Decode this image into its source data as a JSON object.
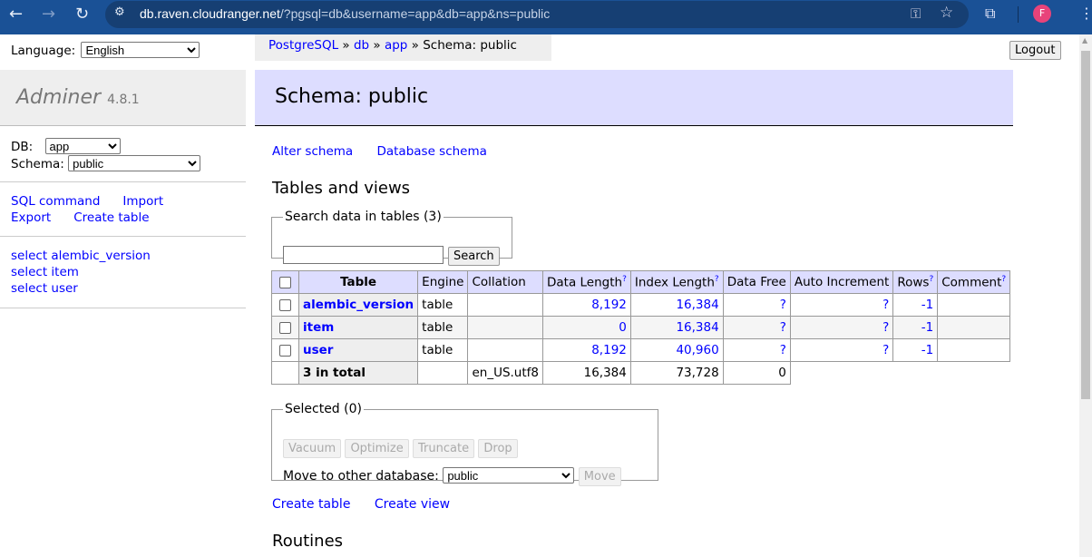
{
  "browser": {
    "url_host": "db.raven.cloudranger.net",
    "url_path": "/?pgsql=db&username=app&db=app&ns=public",
    "avatar": "F"
  },
  "sidebar": {
    "language_label": "Language:",
    "language_value": "English",
    "app_name": "Adminer",
    "version": "4.8.1",
    "db_label": "DB:",
    "db_value": "app",
    "schema_label": "Schema:",
    "schema_value": "public",
    "links": [
      "SQL command",
      "Import",
      "Export",
      "Create table"
    ],
    "tables": [
      "select alembic_version",
      "select item",
      "select user"
    ]
  },
  "breadcrumb": {
    "items": [
      "PostgreSQL",
      "db",
      "app"
    ],
    "current": "Schema: public",
    "sep": "»"
  },
  "logout": "Logout",
  "title": "Schema: public",
  "links": {
    "alter_schema": "Alter schema",
    "database_schema": "Database schema",
    "create_table": "Create table",
    "create_view": "Create view"
  },
  "tables_heading": "Tables and views",
  "search": {
    "legend": "Search data in tables (3)",
    "value": "",
    "button": "Search"
  },
  "table": {
    "headers": [
      "Table",
      "Engine",
      "Collation",
      "Data Length",
      "Index Length",
      "Data Free",
      "Auto Increment",
      "Rows",
      "Comment"
    ],
    "rows": [
      {
        "name": "alembic_version",
        "engine": "table",
        "collation": "",
        "data_length": "8,192",
        "index_length": "16,384",
        "data_free": "?",
        "auto_increment": "?",
        "rows": "-1",
        "comment": ""
      },
      {
        "name": "item",
        "engine": "table",
        "collation": "",
        "data_length": "0",
        "index_length": "16,384",
        "data_free": "?",
        "auto_increment": "?",
        "rows": "-1",
        "comment": ""
      },
      {
        "name": "user",
        "engine": "table",
        "collation": "",
        "data_length": "8,192",
        "index_length": "40,960",
        "data_free": "?",
        "auto_increment": "?",
        "rows": "-1",
        "comment": ""
      }
    ],
    "total": {
      "label": "3 in total",
      "collation": "en_US.utf8",
      "data_length": "16,384",
      "index_length": "73,728",
      "data_free": "0"
    }
  },
  "selected": {
    "legend": "Selected (0)",
    "buttons": [
      "Vacuum",
      "Optimize",
      "Truncate",
      "Drop"
    ],
    "move_label": "Move to other database:",
    "move_value": "public",
    "move_button": "Move"
  },
  "routines_heading": "Routines"
}
